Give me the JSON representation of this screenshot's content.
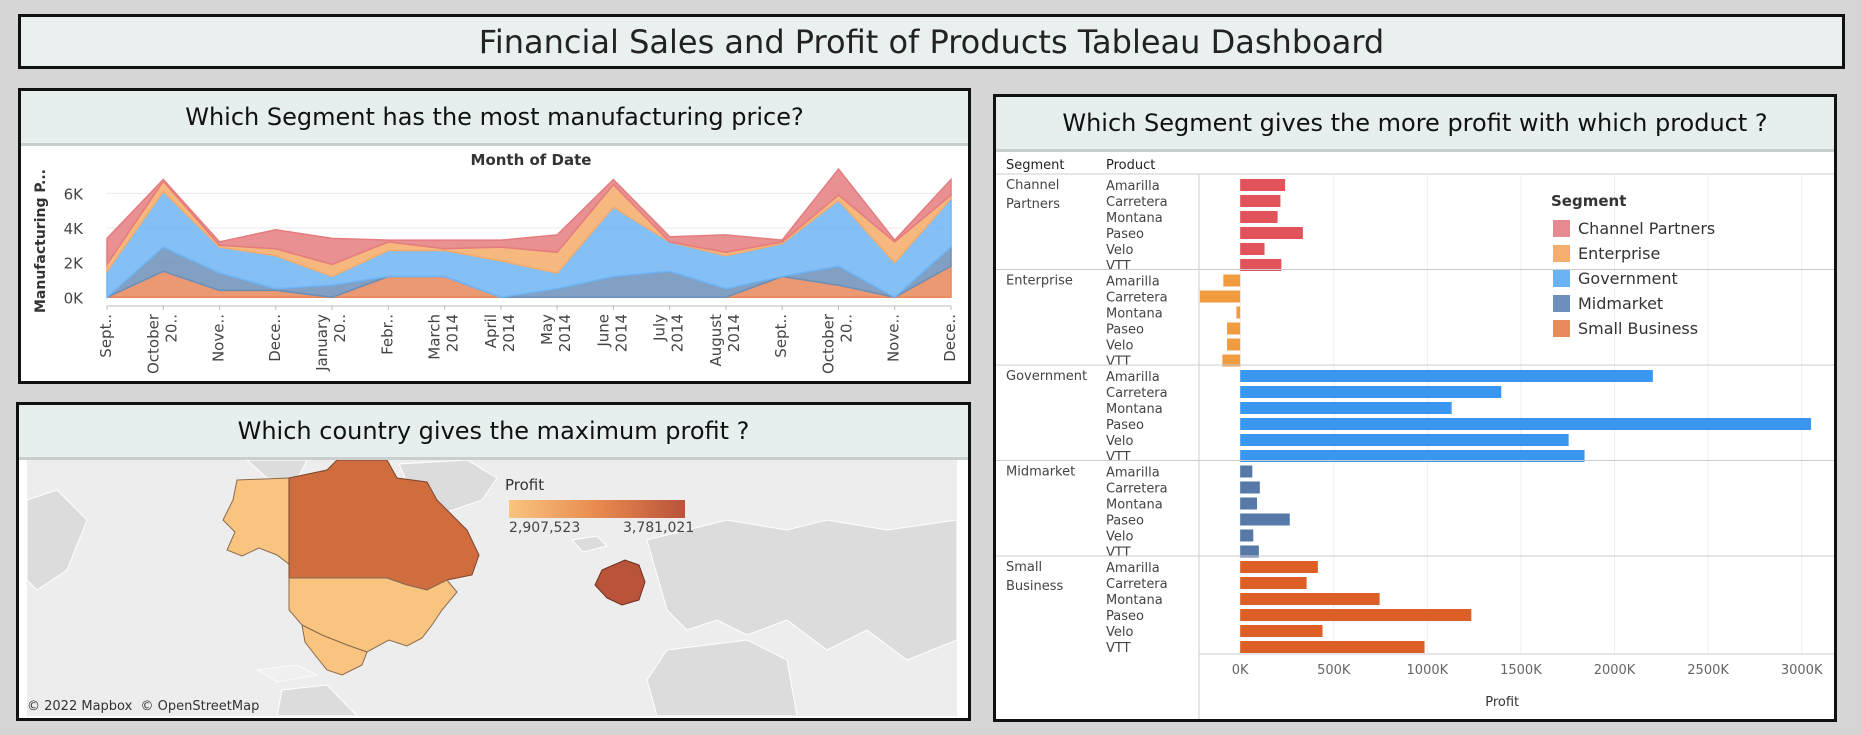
{
  "dashboard": {
    "title": "Financial Sales and Profit of Products Tableau Dashboard"
  },
  "area_panel": {
    "title": "Which Segment has the most manufacturing price?",
    "header": "Month of Date",
    "y_axis_label": "Manufacturing P...",
    "y_ticks": [
      "6K",
      "4K",
      "2K",
      "0K"
    ],
    "x_ticks": [
      [
        "Sept.."
      ],
      [
        "October",
        "20.."
      ],
      [
        "Nove.."
      ],
      [
        "Dece.."
      ],
      [
        "January",
        "20.."
      ],
      [
        "Febr.."
      ],
      [
        "March",
        "2014"
      ],
      [
        "April",
        "2014"
      ],
      [
        "May",
        "2014"
      ],
      [
        "June",
        "2014"
      ],
      [
        "July",
        "2014"
      ],
      [
        "August",
        "2014"
      ],
      [
        "Sept.."
      ],
      [
        "October",
        "20.."
      ],
      [
        "Nove.."
      ],
      [
        "Dece.."
      ]
    ]
  },
  "map_panel": {
    "title": "Which country gives the maximum profit ?",
    "legend_title": "Profit",
    "legend_min": "2,907,523",
    "legend_max": "3,781,021",
    "attribution": "© 2022 Mapbox  © OpenStreetMap",
    "colors": {
      "low": "#f8c47f",
      "high": "#b9533a"
    }
  },
  "bar_panel": {
    "title": "Which Segment gives the more profit with which product ?",
    "col_segment": "Segment",
    "col_product": "Product",
    "x_axis_title": "Profit",
    "legend_title": "Segment"
  },
  "chart_data": [
    {
      "type": "area",
      "title": "Which Segment has the most manufacturing price?",
      "xlabel": "Month of Date",
      "ylabel": "Manufacturing P...",
      "ylim": [
        -500,
        7000
      ],
      "categories": [
        "Sept.",
        "October 2013",
        "Nove.",
        "Dece.",
        "January 2014",
        "Febr.",
        "March 2014",
        "April 2014",
        "May 2014",
        "June 2014",
        "July 2014",
        "August 2014",
        "Sept.",
        "October 2014",
        "Nove.",
        "Dece."
      ],
      "series": [
        {
          "name": "Small Business",
          "color": "#e8875b",
          "values": [
            0,
            1500,
            400,
            400,
            0,
            1200,
            1200,
            0,
            0,
            0,
            0,
            0,
            1200,
            700,
            0,
            1800
          ]
        },
        {
          "name": "Midmarket",
          "color": "#6b8fb8",
          "values": [
            0,
            1400,
            1000,
            100,
            700,
            0,
            0,
            0,
            500,
            1200,
            1500,
            500,
            0,
            1100,
            0,
            1100
          ]
        },
        {
          "name": "Government",
          "color": "#6fb5f5",
          "values": [
            1500,
            3200,
            1500,
            1900,
            500,
            1500,
            1500,
            2100,
            900,
            4000,
            1700,
            1900,
            1900,
            3800,
            2000,
            2800
          ]
        },
        {
          "name": "Enterprise",
          "color": "#f6ac6a",
          "values": [
            400,
            600,
            100,
            400,
            700,
            500,
            100,
            800,
            1200,
            1300,
            0,
            200,
            100,
            300,
            1200,
            200
          ]
        },
        {
          "name": "Channel Partners",
          "color": "#e57c7f",
          "values": [
            1500,
            100,
            200,
            1100,
            1500,
            100,
            500,
            400,
            1000,
            300,
            300,
            1000,
            100,
            1500,
            100,
            900
          ]
        }
      ]
    },
    {
      "type": "bar",
      "title": "Which Segment gives the more profit with which product ?",
      "orientation": "horizontal",
      "xlabel": "Profit",
      "xlim": [
        -220000,
        3130000
      ],
      "x_ticks": [
        0,
        500000,
        1000000,
        1500000,
        2000000,
        2500000,
        3000000
      ],
      "x_tick_labels": [
        "0K",
        "500K",
        "1000K",
        "1500K",
        "2000K",
        "2500K",
        "3000K"
      ],
      "legend_position": "top-right",
      "groups": [
        {
          "segment": [
            "Channel",
            "Partners"
          ],
          "name": "Channel Partners",
          "color": "#e2545c",
          "products": [
            "Amarilla",
            "Carretera",
            "Montana",
            "Paseo",
            "Velo",
            "VTT"
          ],
          "values": [
            240000,
            215000,
            200000,
            335000,
            130000,
            220000
          ]
        },
        {
          "segment": [
            "Enterprise"
          ],
          "name": "Enterprise",
          "color": "#f19b3f",
          "products": [
            "Amarilla",
            "Carretera",
            "Montana",
            "Paseo",
            "Velo",
            "VTT"
          ],
          "values": [
            -90000,
            -215000,
            -20000,
            -70000,
            -70000,
            -95000
          ]
        },
        {
          "segment": [
            "Government"
          ],
          "name": "Government",
          "color": "#3a97ef",
          "products": [
            "Amarilla",
            "Carretera",
            "Montana",
            "Paseo",
            "Velo",
            "VTT"
          ],
          "values": [
            2205000,
            1395000,
            1130000,
            3050000,
            1755000,
            1840000
          ]
        },
        {
          "segment": [
            "Midmarket"
          ],
          "name": "Midmarket",
          "color": "#5679a8",
          "products": [
            "Amarilla",
            "Carretera",
            "Montana",
            "Paseo",
            "Velo",
            "VTT"
          ],
          "values": [
            65000,
            105000,
            90000,
            265000,
            70000,
            100000
          ]
        },
        {
          "segment": [
            "Small",
            "Business"
          ],
          "name": "Small Business",
          "color": "#dc5f27",
          "products": [
            "Amarilla",
            "Carretera",
            "Montana",
            "Paseo",
            "Velo",
            "VTT"
          ],
          "values": [
            415000,
            355000,
            745000,
            1235000,
            440000,
            985000
          ]
        }
      ],
      "legend": [
        {
          "label": "Channel Partners",
          "color": "#e88890"
        },
        {
          "label": "Enterprise",
          "color": "#f5ae6e"
        },
        {
          "label": "Government",
          "color": "#6cb3f3"
        },
        {
          "label": "Midmarket",
          "color": "#6c8fbc"
        },
        {
          "label": "Small Business",
          "color": "#e98a5c"
        }
      ]
    }
  ]
}
